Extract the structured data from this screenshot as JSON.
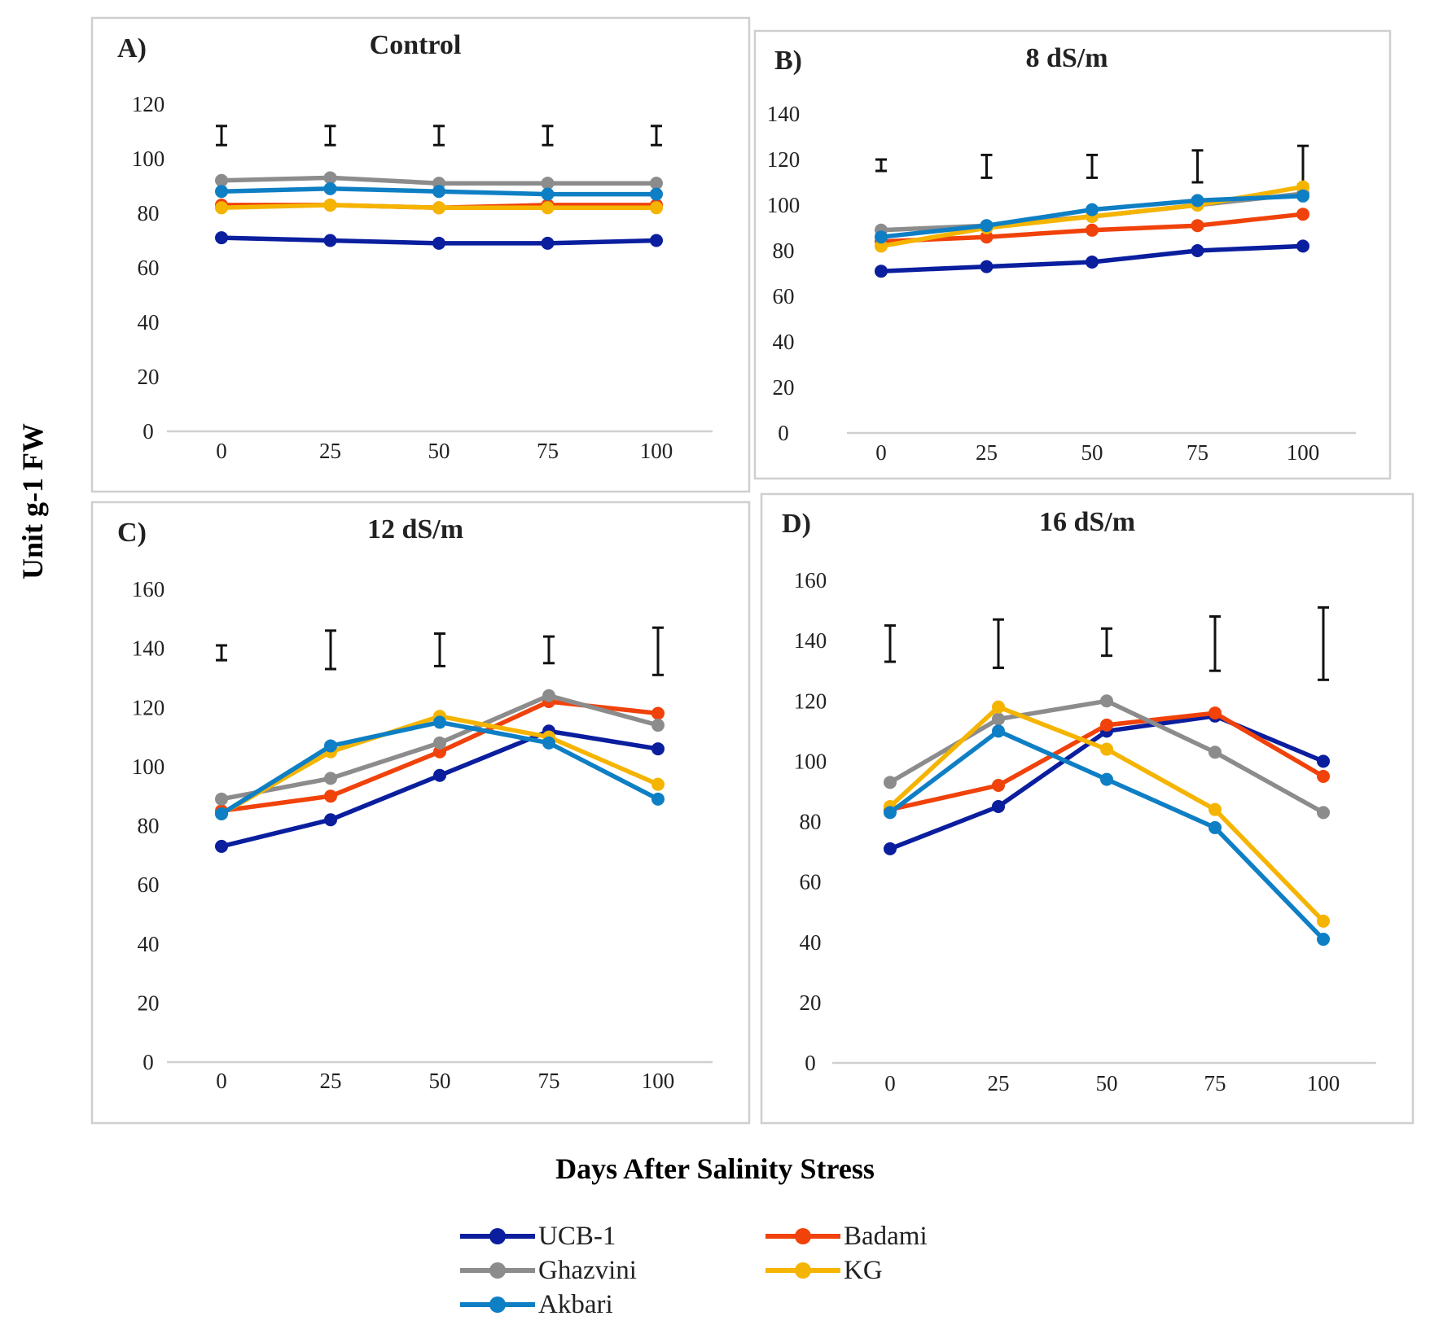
{
  "y_axis_label": "Unit g-1 FW",
  "x_axis_label": "Days After Salinity Stress",
  "legend": [
    {
      "name": "UCB-1",
      "color": "#0a1e9e"
    },
    {
      "name": "Badami",
      "color": "#f0420a"
    },
    {
      "name": "Ghazvini",
      "color": "#8c8c8c"
    },
    {
      "name": "KG",
      "color": "#f5b400"
    },
    {
      "name": "Akbari",
      "color": "#0e7fc4"
    }
  ],
  "chart_data": [
    {
      "panel": "A)",
      "title": "Control",
      "type": "line",
      "categories": [
        "0",
        "25",
        "50",
        "75",
        "100"
      ],
      "ylim": [
        0,
        120
      ],
      "yticks": [
        "0",
        "20",
        "40",
        "60",
        "80",
        "100",
        "120"
      ],
      "series": [
        {
          "name": "UCB-1",
          "values": [
            71,
            70,
            69,
            69,
            70
          ]
        },
        {
          "name": "Badami",
          "values": [
            83,
            83,
            82,
            83,
            83
          ]
        },
        {
          "name": "Ghazvini",
          "values": [
            92,
            93,
            91,
            91,
            91
          ]
        },
        {
          "name": "KG",
          "values": [
            82,
            83,
            82,
            82,
            82
          ]
        },
        {
          "name": "Akbari",
          "values": [
            88,
            89,
            88,
            87,
            87
          ]
        }
      ],
      "error_bars": [
        {
          "low": 105,
          "high": 112
        },
        {
          "low": 105,
          "high": 112
        },
        {
          "low": 105,
          "high": 112
        },
        {
          "low": 105,
          "high": 112
        },
        {
          "low": 105,
          "high": 112
        }
      ]
    },
    {
      "panel": "B)",
      "title": "8 dS/m",
      "type": "line",
      "categories": [
        "0",
        "25",
        "50",
        "75",
        "100"
      ],
      "ylim": [
        0,
        140
      ],
      "yticks": [
        "0",
        "20",
        "40",
        "60",
        "80",
        "100",
        "120",
        "140"
      ],
      "series": [
        {
          "name": "UCB-1",
          "values": [
            71,
            73,
            75,
            80,
            82
          ]
        },
        {
          "name": "Badami",
          "values": [
            84,
            86,
            89,
            91,
            96
          ]
        },
        {
          "name": "Ghazvini",
          "values": [
            89,
            91,
            95,
            100,
            105
          ]
        },
        {
          "name": "KG",
          "values": [
            82,
            90,
            95,
            100,
            108
          ]
        },
        {
          "name": "Akbari",
          "values": [
            86,
            91,
            98,
            102,
            104
          ]
        }
      ],
      "error_bars": [
        {
          "low": 115,
          "high": 120
        },
        {
          "low": 112,
          "high": 122
        },
        {
          "low": 112,
          "high": 122
        },
        {
          "low": 110,
          "high": 124
        },
        {
          "low": 109,
          "high": 126
        }
      ]
    },
    {
      "panel": "C)",
      "title": "12 dS/m",
      "type": "line",
      "categories": [
        "0",
        "25",
        "50",
        "75",
        "100"
      ],
      "ylim": [
        0,
        160
      ],
      "yticks": [
        "0",
        "20",
        "40",
        "60",
        "80",
        "100",
        "120",
        "140",
        "160"
      ],
      "series": [
        {
          "name": "UCB-1",
          "values": [
            73,
            82,
            97,
            112,
            106
          ]
        },
        {
          "name": "Badami",
          "values": [
            85,
            90,
            105,
            122,
            118
          ]
        },
        {
          "name": "Ghazvini",
          "values": [
            89,
            96,
            108,
            124,
            114
          ]
        },
        {
          "name": "KG",
          "values": [
            84,
            105,
            117,
            110,
            94
          ]
        },
        {
          "name": "Akbari",
          "values": [
            84,
            107,
            115,
            108,
            89
          ]
        }
      ],
      "error_bars": [
        {
          "low": 136,
          "high": 141
        },
        {
          "low": 133,
          "high": 146
        },
        {
          "low": 134,
          "high": 145
        },
        {
          "low": 135,
          "high": 144
        },
        {
          "low": 131,
          "high": 147
        }
      ]
    },
    {
      "panel": "D)",
      "title": "16 dS/m",
      "type": "line",
      "categories": [
        "0",
        "25",
        "50",
        "75",
        "100"
      ],
      "ylim": [
        0,
        160
      ],
      "yticks": [
        "0",
        "20",
        "40",
        "60",
        "80",
        "100",
        "120",
        "140",
        "160"
      ],
      "series": [
        {
          "name": "UCB-1",
          "values": [
            71,
            85,
            110,
            115,
            100
          ]
        },
        {
          "name": "Badami",
          "values": [
            84,
            92,
            112,
            116,
            95
          ]
        },
        {
          "name": "Ghazvini",
          "values": [
            93,
            114,
            120,
            103,
            83
          ]
        },
        {
          "name": "KG",
          "values": [
            85,
            118,
            104,
            84,
            47
          ]
        },
        {
          "name": "Akbari",
          "values": [
            83,
            110,
            94,
            78,
            41
          ]
        }
      ],
      "error_bars": [
        {
          "low": 133,
          "high": 145
        },
        {
          "low": 131,
          "high": 147
        },
        {
          "low": 135,
          "high": 144
        },
        {
          "low": 130,
          "high": 148
        },
        {
          "low": 127,
          "high": 151
        }
      ]
    }
  ]
}
